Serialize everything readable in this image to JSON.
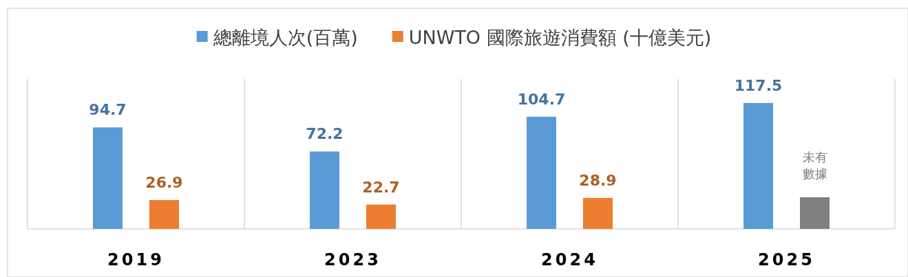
{
  "chart_data": {
    "type": "bar",
    "categories": [
      "2019",
      "2023",
      "2024",
      "2025"
    ],
    "legend": "top",
    "series": [
      {
        "name": "總離境人次(百萬)",
        "color": "#5b9bd5",
        "values": [
          94.7,
          72.2,
          104.7,
          117.5
        ],
        "value_labels": [
          "94.7",
          "72.2",
          "104.7",
          "117.5"
        ]
      },
      {
        "name": "UNWTO 國際旅遊消費額 (十億美元)",
        "color": "#ed7d31",
        "colors": [
          "#ed7d31",
          "#ed7d31",
          "#ed7d31",
          "#7f7f7f"
        ],
        "values": [
          26.9,
          22.7,
          28.9,
          29.5
        ],
        "value_labels": [
          "26.9",
          "22.7",
          "28.9",
          "未有數據"
        ]
      }
    ]
  }
}
